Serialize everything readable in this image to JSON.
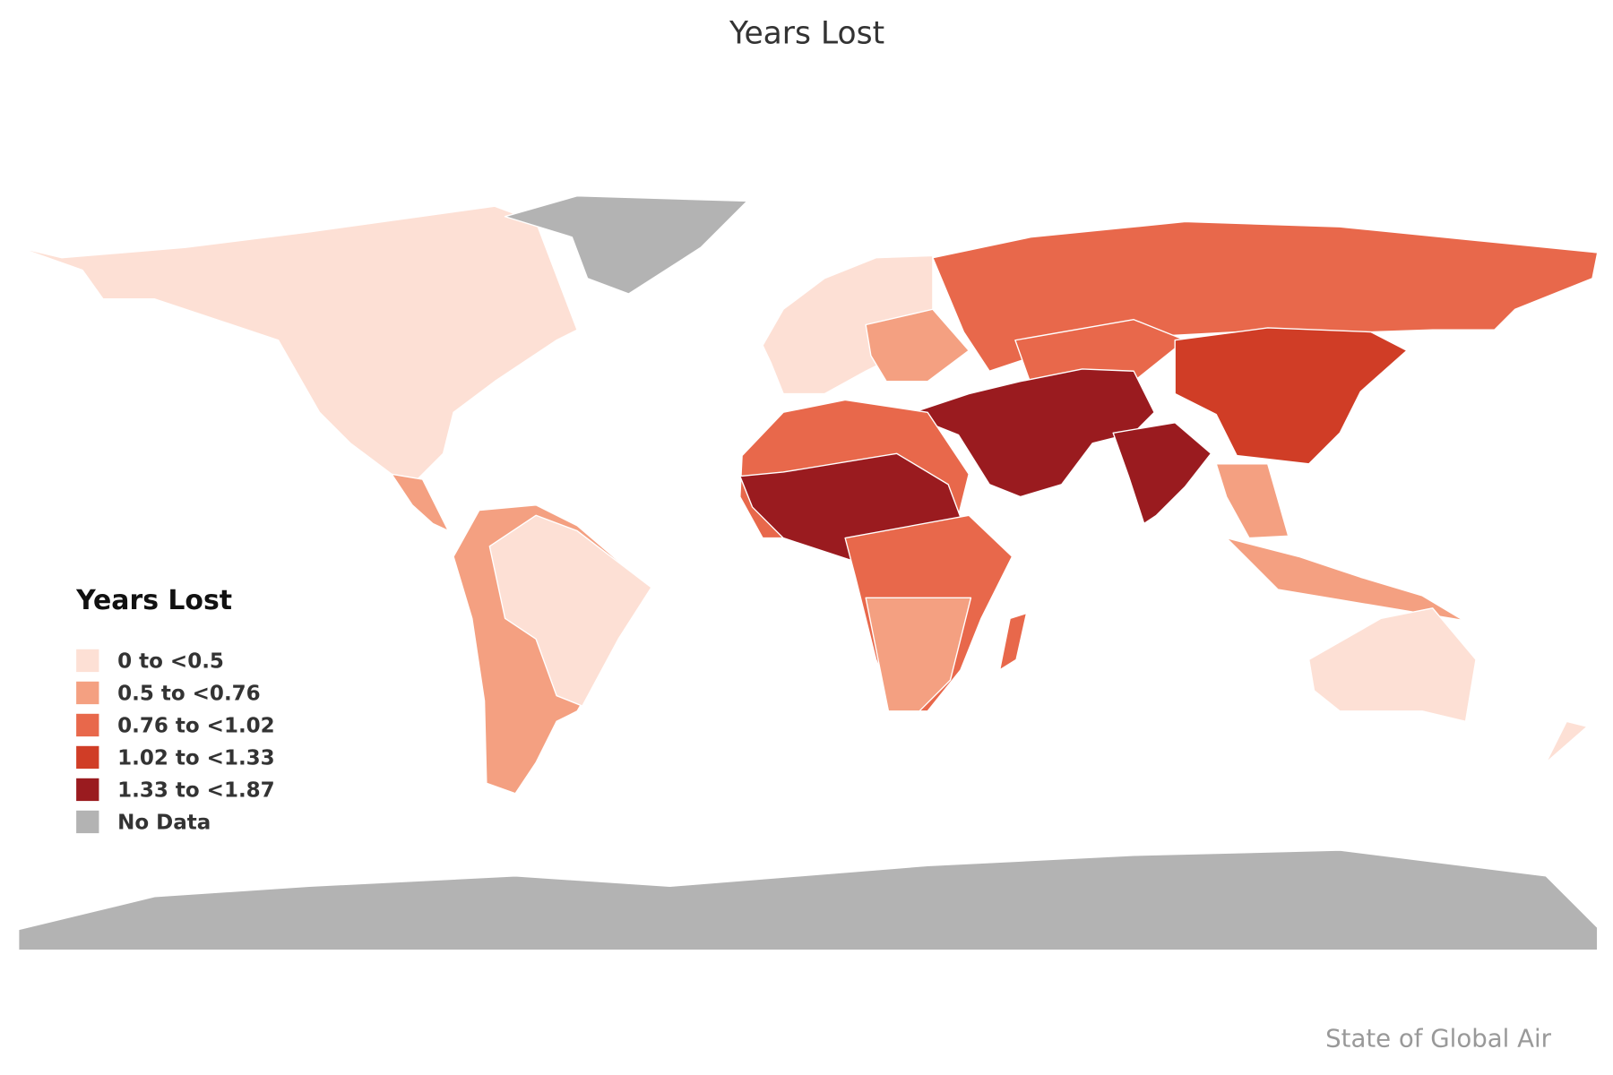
{
  "title": "Years Lost",
  "legend": {
    "title": "Years Lost",
    "items": [
      {
        "label": "0 to <0.5",
        "color": "#fde0d5"
      },
      {
        "label": "0.5 to <0.76",
        "color": "#f4a081"
      },
      {
        "label": "0.76 to <1.02",
        "color": "#e8684b"
      },
      {
        "label": "1.02 to <1.33",
        "color": "#d03d26"
      },
      {
        "label": "1.33 to <1.87",
        "color": "#9a1b1f"
      },
      {
        "label": "No Data",
        "color": "#b3b3b3"
      }
    ]
  },
  "credit": "State of Global Air"
}
